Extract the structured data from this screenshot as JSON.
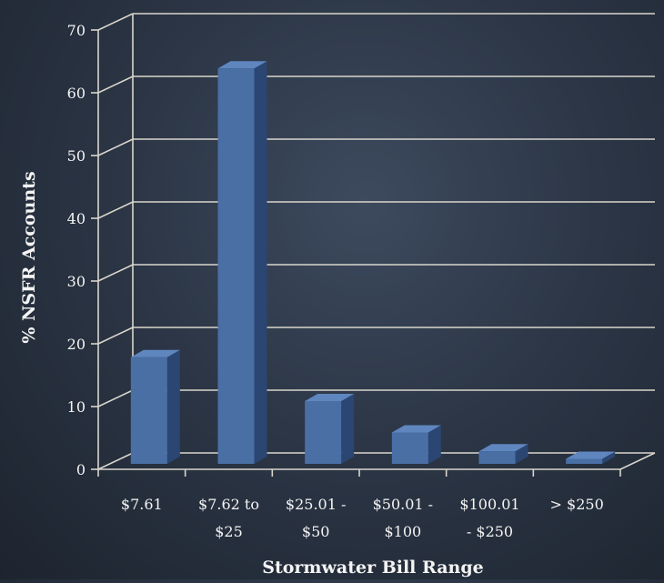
{
  "chart_data": {
    "type": "bar",
    "title": "",
    "xlabel": "Stormwater Bill Range",
    "ylabel": "% NSFR Accounts",
    "ylim": [
      0,
      70
    ],
    "yticks": [
      0,
      10,
      20,
      30,
      40,
      50,
      60,
      70
    ],
    "grid": true,
    "categories": [
      [
        "$7.61"
      ],
      [
        "$7.62 to",
        "$25"
      ],
      [
        "$25.01 -",
        "$50"
      ],
      [
        "$50.01 -",
        "$100"
      ],
      [
        "$100.01",
        "- $250"
      ],
      [
        "> $250"
      ]
    ],
    "values": [
      17,
      63,
      10,
      5,
      2,
      0.8
    ],
    "colors": {
      "bar_front": "#4a6fa5",
      "bar_side": "#2b4672",
      "bar_top": "#5f86bf",
      "grid": "#d9d6cc"
    }
  }
}
